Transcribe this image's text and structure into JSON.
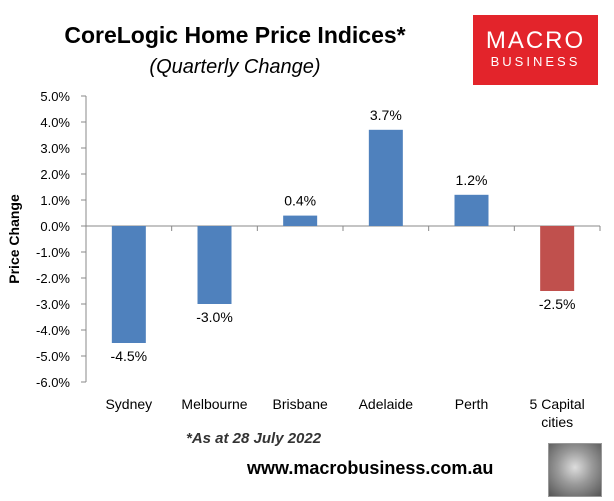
{
  "header": {
    "title": "CoreLogic Home Price Indices*",
    "subtitle": "(Quarterly Change)"
  },
  "logo": {
    "line1": "MACRO",
    "line2": "BUSINESS"
  },
  "footer": {
    "footnote": "*As at 28 July 2022",
    "url": "www.macrobusiness.com.au"
  },
  "colors": {
    "positive": "#4f81bd",
    "negative": "#c0504d",
    "logo": "#e3242b"
  },
  "chart_data": {
    "type": "bar",
    "title": "CoreLogic Home Price Indices*",
    "subtitle": "(Quarterly Change)",
    "xlabel": "",
    "ylabel": "Price Change",
    "ylim": [
      -6,
      5
    ],
    "yticks": [
      "5.0%",
      "4.0%",
      "3.0%",
      "2.0%",
      "1.0%",
      "0.0%",
      "-1.0%",
      "-2.0%",
      "-3.0%",
      "-4.0%",
      "-5.0%",
      "-6.0%"
    ],
    "categories": [
      "Sydney",
      "Melbourne",
      "Brisbane",
      "Adelaide",
      "Perth",
      "5 Capital cities"
    ],
    "values": [
      -4.5,
      -3.0,
      0.4,
      3.7,
      1.2,
      -2.5
    ],
    "data_labels": [
      "-4.5%",
      "-3.0%",
      "0.4%",
      "3.7%",
      "1.2%",
      "-2.5%"
    ],
    "bar_colors": [
      "#4f81bd",
      "#4f81bd",
      "#4f81bd",
      "#4f81bd",
      "#4f81bd",
      "#c0504d"
    ],
    "grid": false,
    "legend": "none"
  }
}
